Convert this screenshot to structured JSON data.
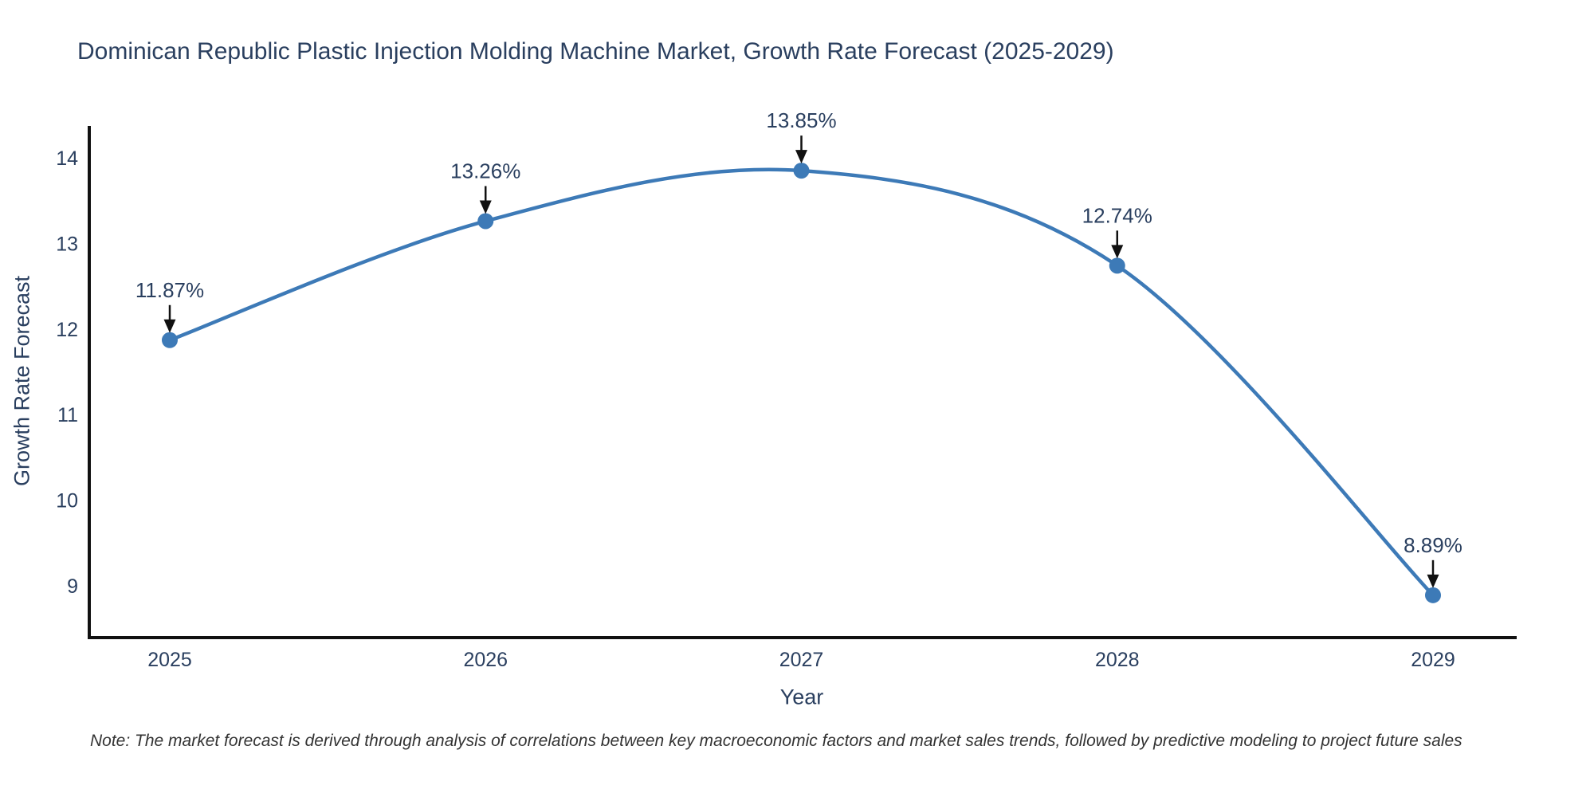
{
  "chart_data": {
    "type": "line",
    "title": "Dominican Republic Plastic Injection Molding Machine Market, Growth Rate Forecast (2025-2029)",
    "categories": [
      "2025",
      "2026",
      "2027",
      "2028",
      "2029"
    ],
    "values": [
      11.87,
      13.26,
      13.85,
      12.74,
      8.89
    ],
    "point_labels": [
      "11.87%",
      "13.26%",
      "13.85%",
      "12.74%",
      "8.89%"
    ],
    "xlabel": "Year",
    "ylabel": "Growth Rate Forecast",
    "yticks": [
      9,
      10,
      11,
      12,
      13,
      14
    ],
    "ylim": [
      8.4,
      14.35
    ],
    "line_shape": "spline",
    "grid": false,
    "legend": "none",
    "colors": {
      "line": "#3d7ab7",
      "marker": "#3d7ab7",
      "axis": "#111111",
      "arrow": "#111111",
      "text": "#2a3f5f"
    }
  },
  "note": "Note: The market forecast is derived through analysis of correlations between key macroeconomic factors and market sales trends, followed by predictive modeling to project future sales"
}
